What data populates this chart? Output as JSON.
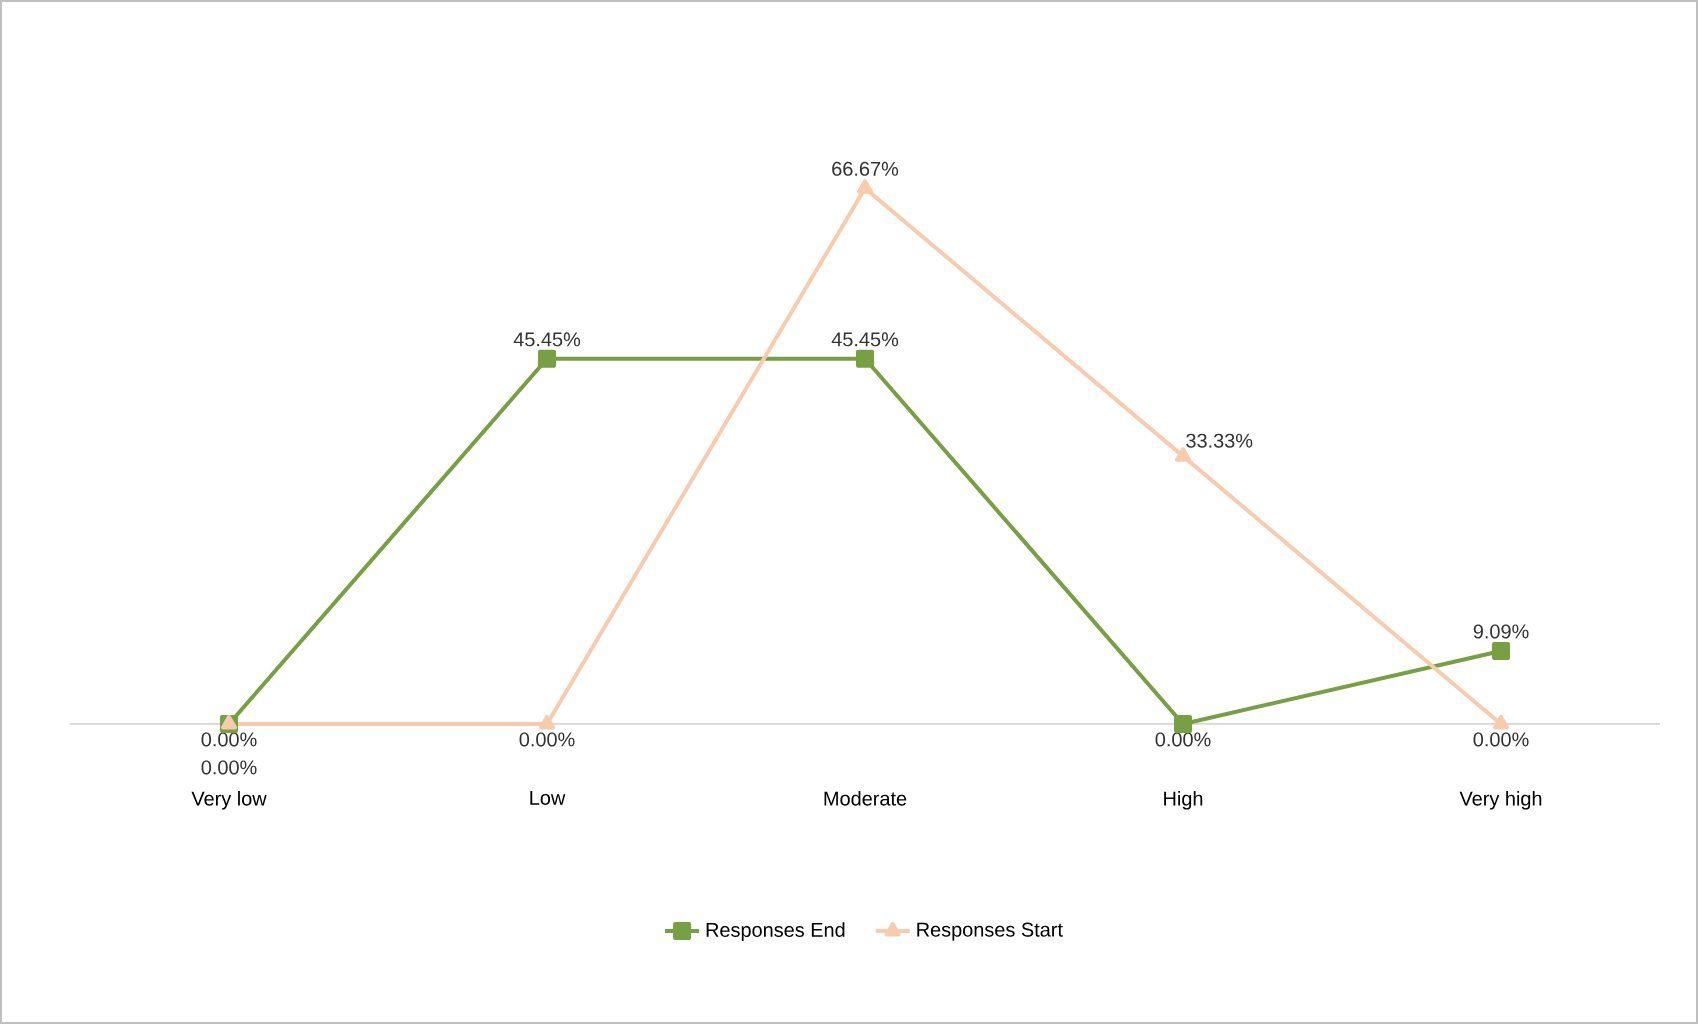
{
  "chart_data": {
    "type": "line",
    "categories": [
      "Very low",
      "Low",
      "Moderate",
      "High",
      "Very high"
    ],
    "tick_labels": "x",
    "legend": "bottom",
    "grid": false,
    "series": [
      {
        "name": "Responses End",
        "color": "#77a043",
        "marker": "square",
        "values": [
          0,
          45.45,
          45.45,
          0,
          9.09
        ],
        "value_labels": [
          "0.00%",
          "45.45%",
          "45.45%",
          "0.00%",
          "9.09%"
        ]
      },
      {
        "name": "Responses Start",
        "color": "#f8cbad",
        "marker": "triangle",
        "values": [
          0,
          0,
          66.67,
          33.33,
          0
        ],
        "value_labels": [
          "0.00%",
          "0.00%",
          "66.67%",
          "33.33%",
          "0.00%"
        ]
      }
    ]
  }
}
